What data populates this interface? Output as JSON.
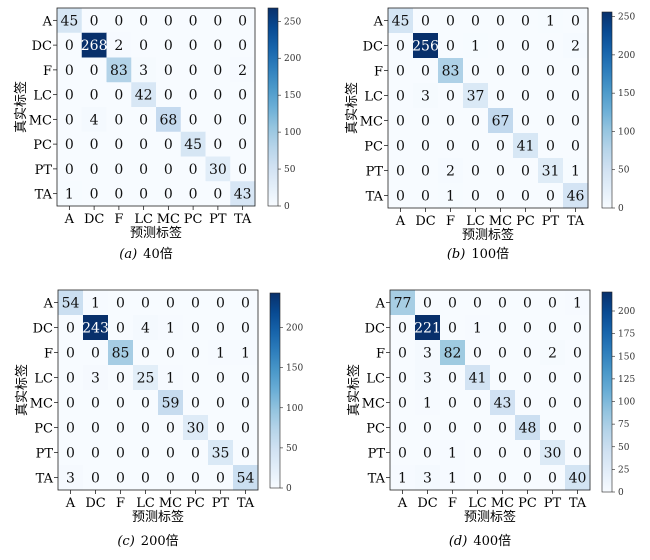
{
  "figure": {
    "panels": [
      {
        "caption_letter": "(a)",
        "caption_text": "40倍"
      },
      {
        "caption_letter": "(b)",
        "caption_text": "100倍"
      },
      {
        "caption_letter": "(c)",
        "caption_text": "200倍"
      },
      {
        "caption_letter": "(d)",
        "caption_text": "400倍"
      }
    ]
  },
  "chart_data": [
    {
      "type": "heatmap",
      "xlabel": "预测标签",
      "ylabel": "真实标签",
      "categories": [
        "A",
        "DC",
        "F",
        "LC",
        "MC",
        "PC",
        "PT",
        "TA"
      ],
      "values": [
        [
          45,
          0,
          0,
          0,
          0,
          0,
          0,
          0
        ],
        [
          0,
          268,
          2,
          0,
          0,
          0,
          0,
          0
        ],
        [
          0,
          0,
          83,
          3,
          0,
          0,
          0,
          2
        ],
        [
          0,
          0,
          0,
          42,
          0,
          0,
          0,
          0
        ],
        [
          0,
          4,
          0,
          0,
          68,
          0,
          0,
          0
        ],
        [
          0,
          0,
          0,
          0,
          0,
          45,
          0,
          0
        ],
        [
          0,
          0,
          0,
          0,
          0,
          0,
          30,
          0
        ],
        [
          1,
          0,
          0,
          0,
          0,
          0,
          0,
          43
        ]
      ],
      "colorbar": {
        "min": 0,
        "max": 268,
        "ticks": [
          0,
          50,
          100,
          150,
          200,
          250
        ]
      },
      "colors": {
        "low": "#f7fbff",
        "high": "#08306b"
      }
    },
    {
      "type": "heatmap",
      "xlabel": "预测标签",
      "ylabel": "真实标签",
      "categories": [
        "A",
        "DC",
        "F",
        "LC",
        "MC",
        "PC",
        "PT",
        "TA"
      ],
      "values": [
        [
          45,
          0,
          0,
          0,
          0,
          0,
          1,
          0
        ],
        [
          0,
          256,
          0,
          1,
          0,
          0,
          0,
          2
        ],
        [
          0,
          0,
          83,
          0,
          0,
          0,
          0,
          0
        ],
        [
          0,
          3,
          0,
          37,
          0,
          0,
          0,
          0
        ],
        [
          0,
          0,
          0,
          0,
          67,
          0,
          0,
          0
        ],
        [
          0,
          0,
          0,
          0,
          0,
          41,
          0,
          0
        ],
        [
          0,
          0,
          2,
          0,
          0,
          0,
          31,
          1
        ],
        [
          0,
          0,
          1,
          0,
          0,
          0,
          0,
          46
        ]
      ],
      "colorbar": {
        "min": 0,
        "max": 256,
        "ticks": [
          0,
          50,
          100,
          150,
          200,
          250
        ]
      },
      "colors": {
        "low": "#f7fbff",
        "high": "#08306b"
      }
    },
    {
      "type": "heatmap",
      "xlabel": "预测标签",
      "ylabel": "真实标签",
      "categories": [
        "A",
        "DC",
        "F",
        "LC",
        "MC",
        "PC",
        "PT",
        "TA"
      ],
      "values": [
        [
          54,
          1,
          0,
          0,
          0,
          0,
          0,
          0
        ],
        [
          0,
          243,
          0,
          4,
          1,
          0,
          0,
          0
        ],
        [
          0,
          0,
          85,
          0,
          0,
          0,
          1,
          1
        ],
        [
          0,
          3,
          0,
          25,
          1,
          0,
          0,
          0
        ],
        [
          0,
          0,
          0,
          0,
          59,
          0,
          0,
          0
        ],
        [
          0,
          0,
          0,
          0,
          0,
          30,
          0,
          0
        ],
        [
          0,
          0,
          0,
          0,
          0,
          0,
          35,
          0
        ],
        [
          3,
          0,
          0,
          0,
          0,
          0,
          0,
          54
        ]
      ],
      "colorbar": {
        "min": 0,
        "max": 243,
        "ticks": [
          0,
          50,
          100,
          150,
          200
        ]
      },
      "colors": {
        "low": "#f7fbff",
        "high": "#08306b"
      }
    },
    {
      "type": "heatmap",
      "xlabel": "预测标签",
      "ylabel": "真实标签",
      "categories": [
        "A",
        "DC",
        "F",
        "LC",
        "MC",
        "PC",
        "PT",
        "TA"
      ],
      "values": [
        [
          77,
          0,
          0,
          0,
          0,
          0,
          0,
          1
        ],
        [
          0,
          221,
          0,
          1,
          0,
          0,
          0,
          0
        ],
        [
          0,
          3,
          82,
          0,
          0,
          0,
          2,
          0
        ],
        [
          0,
          3,
          0,
          41,
          0,
          0,
          0,
          0
        ],
        [
          0,
          1,
          0,
          0,
          43,
          0,
          0,
          0
        ],
        [
          0,
          0,
          0,
          0,
          0,
          48,
          0,
          0
        ],
        [
          0,
          0,
          1,
          0,
          0,
          0,
          30,
          0
        ],
        [
          1,
          3,
          1,
          0,
          0,
          0,
          0,
          40
        ]
      ],
      "colorbar": {
        "min": 0,
        "max": 221,
        "ticks": [
          0,
          25,
          50,
          75,
          100,
          125,
          150,
          175,
          200
        ]
      },
      "colors": {
        "low": "#f7fbff",
        "high": "#08306b"
      }
    }
  ]
}
